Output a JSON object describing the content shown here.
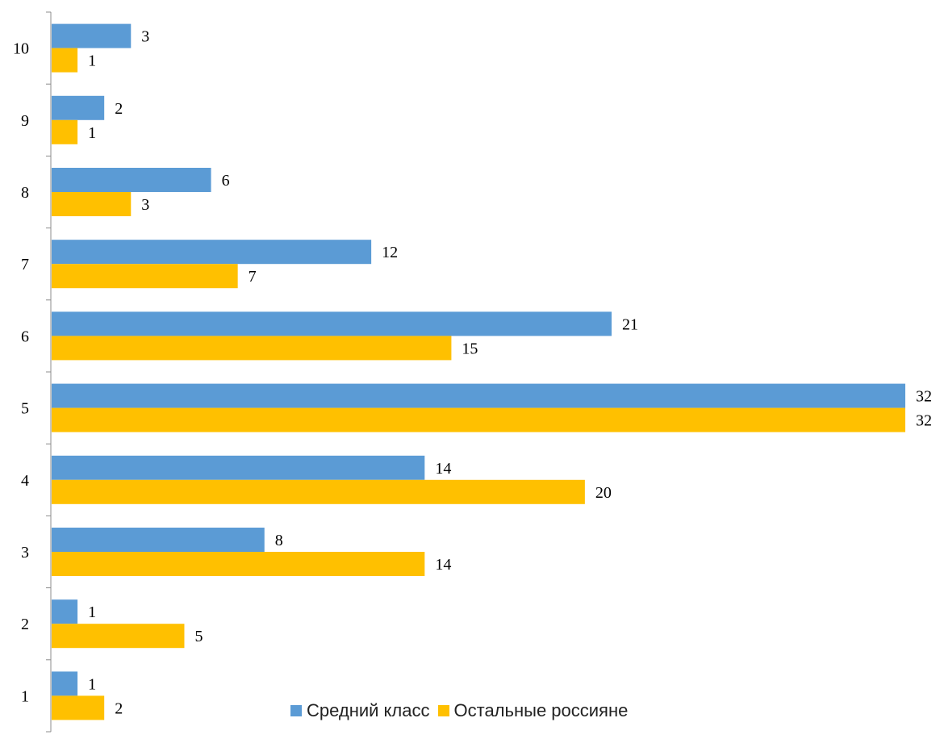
{
  "chart_data": {
    "type": "bar",
    "orientation": "horizontal",
    "categories": [
      "1",
      "2",
      "3",
      "4",
      "5",
      "6",
      "7",
      "8",
      "9",
      "10"
    ],
    "series": [
      {
        "name": "Средний класс",
        "color": "#5B9BD5",
        "values": [
          1,
          1,
          8,
          14,
          32,
          21,
          12,
          6,
          2,
          3
        ]
      },
      {
        "name": "Остальные россияне",
        "color": "#FFC000",
        "values": [
          2,
          5,
          14,
          20,
          32,
          15,
          7,
          3,
          1,
          1
        ]
      }
    ],
    "xlim": [
      0,
      32
    ],
    "data_labels": true,
    "grid": false,
    "legend": "bottom",
    "title": "",
    "xlabel": "",
    "ylabel": ""
  }
}
